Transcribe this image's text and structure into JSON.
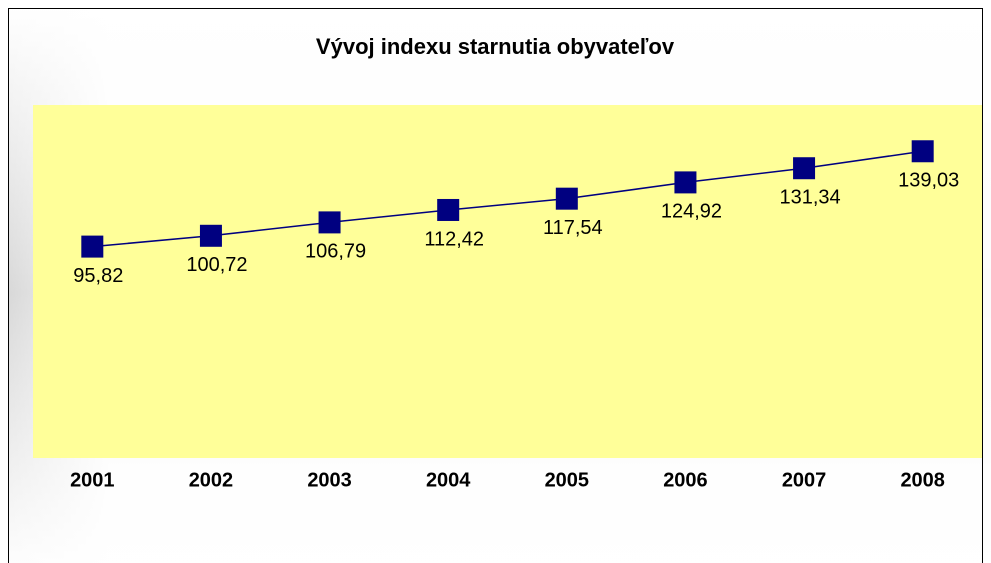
{
  "chart_data": {
    "type": "line",
    "title": "Vývoj indexu starnutia obyvateľov",
    "categories": [
      "2001",
      "2002",
      "2003",
      "2004",
      "2005",
      "2006",
      "2007",
      "2008"
    ],
    "series": [
      {
        "color": "#000080",
        "values": [
          95.82,
          100.72,
          106.79,
          112.42,
          117.54,
          124.92,
          131.34,
          139.03
        ],
        "value_labels": [
          "95,82",
          "100,72",
          "106,79",
          "112,42",
          "117,54",
          "124,92",
          "131,34",
          "139,03"
        ]
      }
    ],
    "ylim": [
      0,
      160
    ],
    "plot_color": "#ffff99"
  }
}
